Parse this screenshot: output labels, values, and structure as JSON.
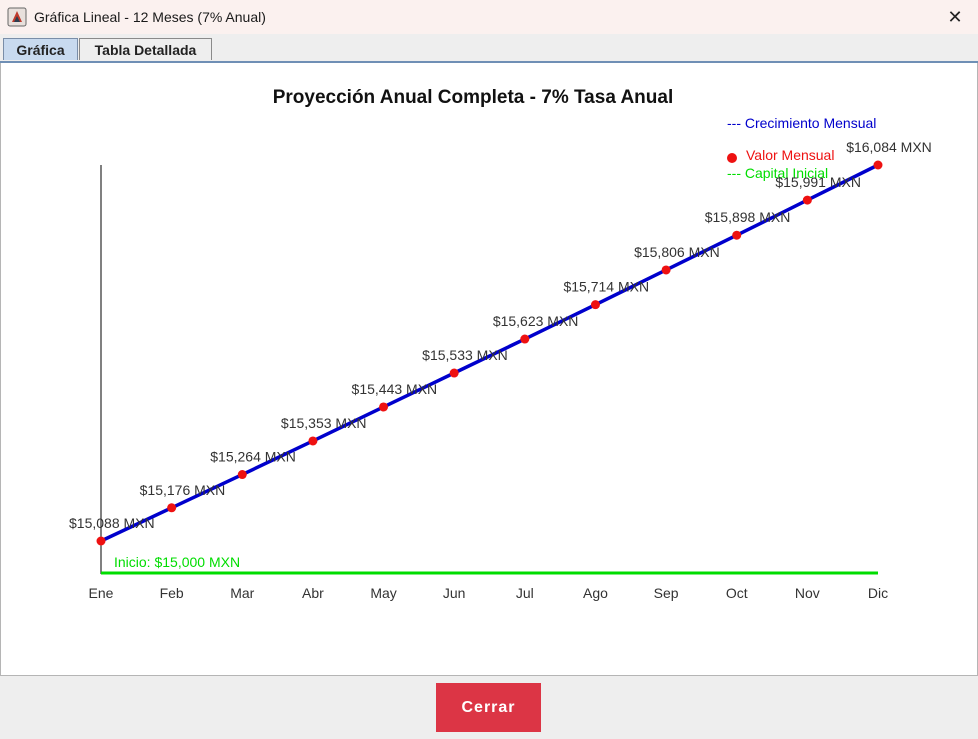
{
  "window": {
    "title": "Gráfica Lineal - 12 Meses (7% Anual)",
    "close_glyph": "✕"
  },
  "tabs": [
    {
      "label": "Gráfica",
      "active": true
    },
    {
      "label": "Tabla Detallada",
      "active": false
    }
  ],
  "footer": {
    "close_label": "Cerrar",
    "close_color": "#dc3545"
  },
  "chart_data": {
    "type": "line",
    "title": "Proyección Anual Completa - 7% Tasa Anual",
    "categories": [
      "Ene",
      "Feb",
      "Mar",
      "Abr",
      "May",
      "Jun",
      "Jul",
      "Ago",
      "Sep",
      "Oct",
      "Nov",
      "Dic"
    ],
    "series": [
      {
        "name": "Crecimiento Mensual",
        "color": "#0000cc",
        "point_color": "#ee1111",
        "values": [
          15088,
          15176,
          15264,
          15353,
          15443,
          15533,
          15623,
          15714,
          15806,
          15898,
          15991,
          16084
        ],
        "labels": [
          "$15,088 MXN",
          "$15,176 MXN",
          "$15,264 MXN",
          "$15,353 MXN",
          "$15,443 MXN",
          "$15,533 MXN",
          "$15,623 MXN",
          "$15,714 MXN",
          "$15,806 MXN",
          "$15,898 MXN",
          "$15,991 MXN",
          "$16,084 MXN"
        ]
      }
    ],
    "baseline": {
      "value": 15000,
      "label": "Inicio: $15,000 MXN",
      "color": "#00dd00"
    },
    "legend": {
      "placement": "top-right",
      "entries": [
        {
          "text": "--- Crecimiento Mensual",
          "color": "#0000cc"
        },
        {
          "text": "Valor Mensual",
          "color": "#ee1111",
          "marker": "dot"
        },
        {
          "text": "--- Capital Inicial",
          "color": "#00dd00"
        }
      ]
    },
    "grid": false
  }
}
